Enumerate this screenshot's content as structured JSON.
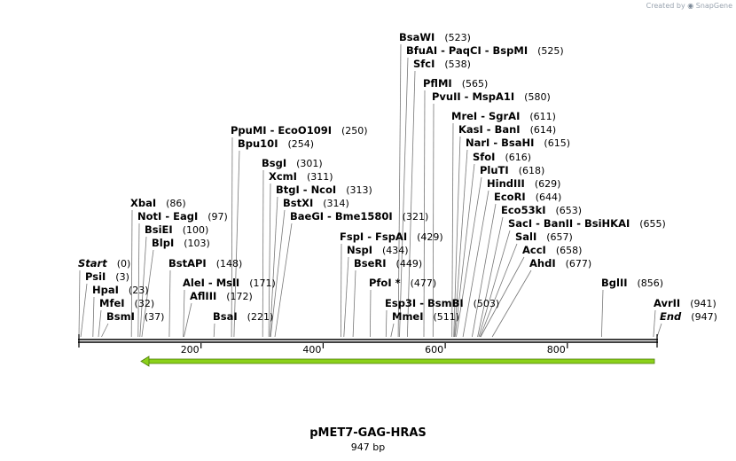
{
  "credit": {
    "prefix": "Created by",
    "brand": "SnapGene"
  },
  "map": {
    "title": "pMET7-GAG-HRAS",
    "length_label": "947 bp",
    "length_bp": 947,
    "axis_ticks": [
      "200",
      "400",
      "600",
      "800"
    ],
    "feature_color": "#8bd11a",
    "labels": [
      {
        "names": [
          "BsaWI"
        ],
        "pos": "(523)",
        "bp": 523
      },
      {
        "names": [
          "BfuAI",
          "PaqCI",
          "BspMI"
        ],
        "pos": "(525)",
        "bp": 525
      },
      {
        "names": [
          "SfcI"
        ],
        "pos": "(538)",
        "bp": 538
      },
      {
        "names": [
          "PflMI"
        ],
        "pos": "(565)",
        "bp": 565
      },
      {
        "names": [
          "PvuII",
          "MspA1I"
        ],
        "pos": "(580)",
        "bp": 580
      },
      {
        "names": [
          "MreI",
          "SgrAI"
        ],
        "pos": "(611)",
        "bp": 611
      },
      {
        "names": [
          "KasI",
          "BanI"
        ],
        "pos": "(614)",
        "bp": 614
      },
      {
        "names": [
          "PpuMI",
          "EcoO109I"
        ],
        "pos": "(250)",
        "bp": 250
      },
      {
        "names": [
          "NarI",
          "BsaHI"
        ],
        "pos": "(615)",
        "bp": 615
      },
      {
        "names": [
          "Bpu10I"
        ],
        "pos": "(254)",
        "bp": 254
      },
      {
        "names": [
          "SfoI"
        ],
        "pos": "(616)",
        "bp": 616
      },
      {
        "names": [
          "BsgI"
        ],
        "pos": "(301)",
        "bp": 301
      },
      {
        "names": [
          "PluTI"
        ],
        "pos": "(618)",
        "bp": 618
      },
      {
        "names": [
          "XcmI"
        ],
        "pos": "(311)",
        "bp": 311
      },
      {
        "names": [
          "HindIII"
        ],
        "pos": "(629)",
        "bp": 629
      },
      {
        "names": [
          "BtgI",
          "NcoI"
        ],
        "pos": "(313)",
        "bp": 313
      },
      {
        "names": [
          "EcoRI"
        ],
        "pos": "(644)",
        "bp": 644
      },
      {
        "names": [
          "XbaI"
        ],
        "pos": "(86)",
        "bp": 86
      },
      {
        "names": [
          "BstXI"
        ],
        "pos": "(314)",
        "bp": 314
      },
      {
        "names": [
          "Eco53kI"
        ],
        "pos": "(653)",
        "bp": 653
      },
      {
        "names": [
          "NotI",
          "EagI"
        ],
        "pos": "(97)",
        "bp": 97
      },
      {
        "names": [
          "BaeGI",
          "Bme1580I"
        ],
        "pos": "(321)",
        "bp": 321
      },
      {
        "names": [
          "SacI",
          "BanII",
          "BsiHKAI"
        ],
        "pos": "(655)",
        "bp": 655
      },
      {
        "names": [
          "BsiEI"
        ],
        "pos": "(100)",
        "bp": 100
      },
      {
        "names": [
          "FspI",
          "FspAI"
        ],
        "pos": "(429)",
        "bp": 429
      },
      {
        "names": [
          "SalI"
        ],
        "pos": "(657)",
        "bp": 657
      },
      {
        "names": [
          "BlpI"
        ],
        "pos": "(103)",
        "bp": 103
      },
      {
        "names": [
          "NspI"
        ],
        "pos": "(434)",
        "bp": 434
      },
      {
        "names": [
          "AccI"
        ],
        "pos": "(658)",
        "bp": 658
      },
      {
        "names": [
          "Start"
        ],
        "pos": "(0)",
        "bp": 0
      },
      {
        "names": [
          "BstAPI"
        ],
        "pos": "(148)",
        "bp": 148
      },
      {
        "names": [
          "BseRI"
        ],
        "pos": "(449)",
        "bp": 449
      },
      {
        "names": [
          "AhdI"
        ],
        "pos": "(677)",
        "bp": 677
      },
      {
        "names": [
          "PsiI"
        ],
        "pos": "(3)",
        "bp": 3
      },
      {
        "names": [
          "HpaI"
        ],
        "pos": "(23)",
        "bp": 23
      },
      {
        "names": [
          "AleI",
          "MslI"
        ],
        "pos": "(171)",
        "bp": 171
      },
      {
        "names": [
          "PfoI *"
        ],
        "pos": "(477)",
        "bp": 477
      },
      {
        "names": [
          "BglII"
        ],
        "pos": "(856)",
        "bp": 856
      },
      {
        "names": [
          "AflIII"
        ],
        "pos": "(172)",
        "bp": 172
      },
      {
        "names": [
          "MfeI"
        ],
        "pos": "(32)",
        "bp": 32
      },
      {
        "names": [
          "Esp3I",
          "BsmBI"
        ],
        "pos": "(503)",
        "bp": 503
      },
      {
        "names": [
          "AvrII"
        ],
        "pos": "(941)",
        "bp": 941
      },
      {
        "names": [
          "BsmI"
        ],
        "pos": "(37)",
        "bp": 37
      },
      {
        "names": [
          "BsaI"
        ],
        "pos": "(221)",
        "bp": 221
      },
      {
        "names": [
          "MmeI"
        ],
        "pos": "(511)",
        "bp": 511
      },
      {
        "names": [
          "End"
        ],
        "pos": "(947)",
        "bp": 947
      }
    ]
  }
}
